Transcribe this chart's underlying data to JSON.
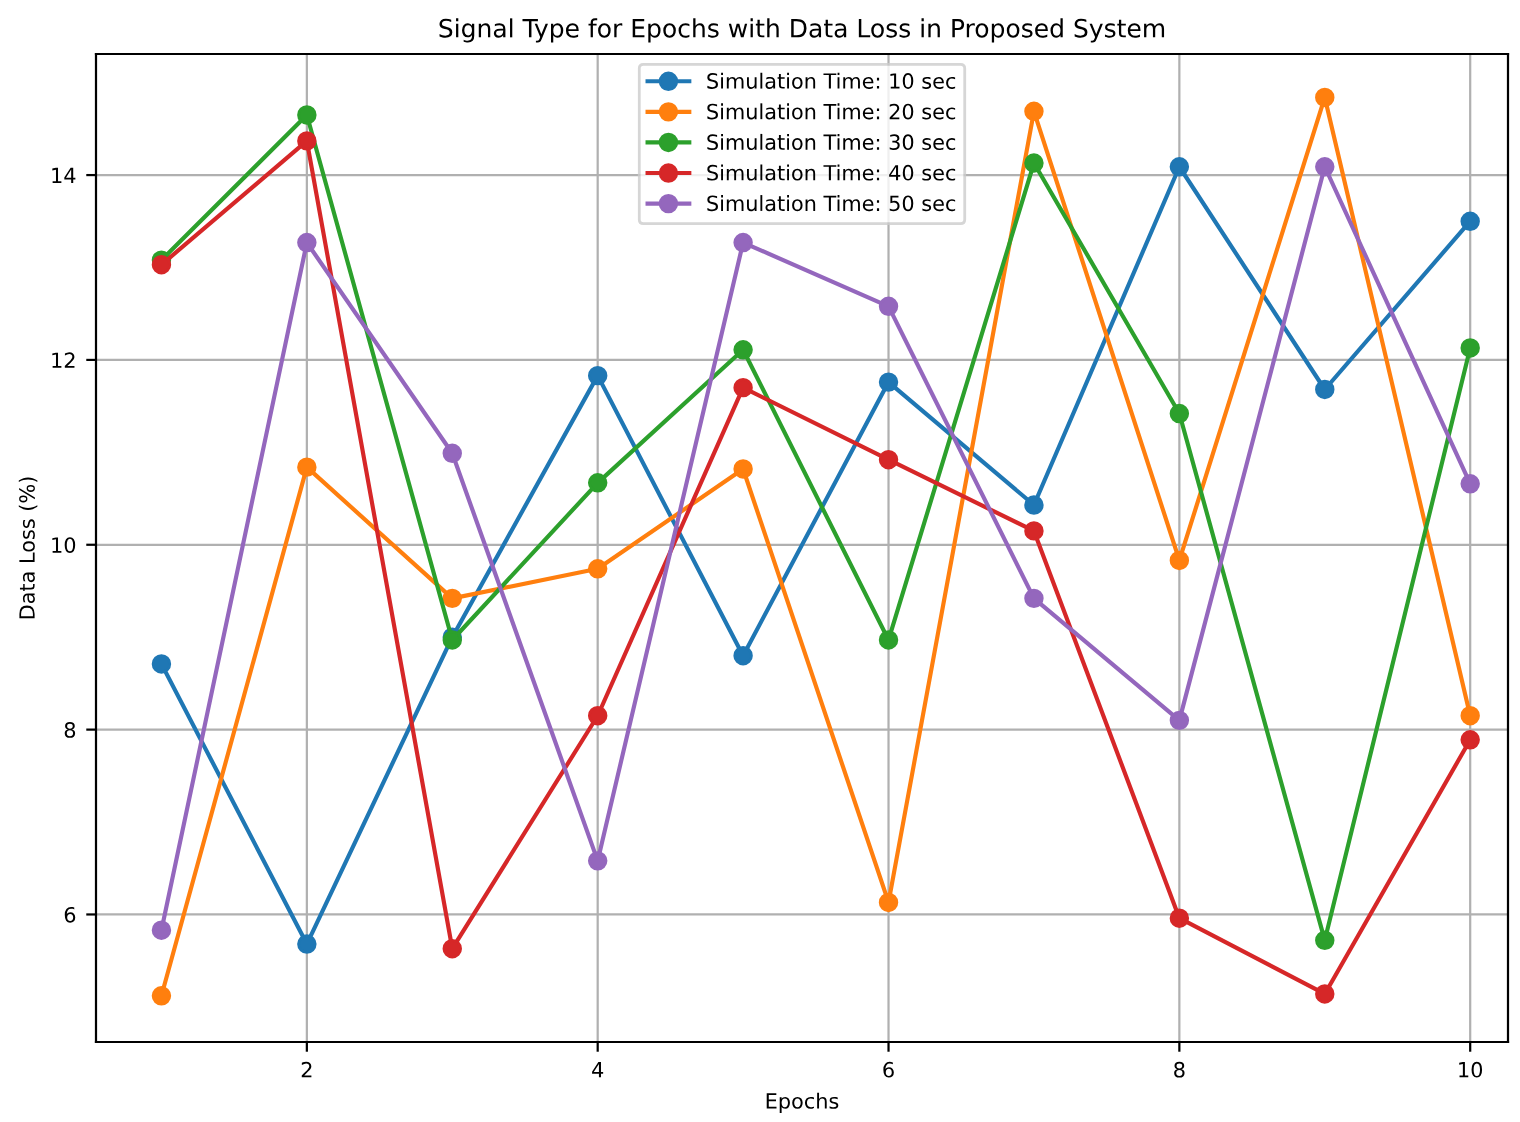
{
  "chart_data": {
    "type": "line",
    "title": "Signal Type for Epochs with Data Loss in Proposed System",
    "xlabel": "Epochs",
    "ylabel": "Data Loss (%)",
    "x": [
      1,
      2,
      3,
      4,
      5,
      6,
      7,
      8,
      9,
      10
    ],
    "series": [
      {
        "name": "Simulation Time: 10 sec",
        "color": "#1f77b4",
        "values": [
          8.71,
          5.68,
          9.0,
          11.83,
          8.8,
          11.76,
          10.43,
          14.09,
          11.68,
          13.5
        ]
      },
      {
        "name": "Simulation Time: 20 sec",
        "color": "#ff7f0e",
        "values": [
          5.12,
          10.84,
          9.42,
          9.74,
          10.82,
          6.13,
          14.69,
          9.83,
          14.84,
          8.15
        ]
      },
      {
        "name": "Simulation Time: 30 sec",
        "color": "#2ca02c",
        "values": [
          13.08,
          14.65,
          8.97,
          10.67,
          12.11,
          8.97,
          14.13,
          11.42,
          5.72,
          12.13
        ]
      },
      {
        "name": "Simulation Time: 40 sec",
        "color": "#d62728",
        "values": [
          13.03,
          14.37,
          5.63,
          8.15,
          11.7,
          10.92,
          10.15,
          5.96,
          5.14,
          7.89
        ]
      },
      {
        "name": "Simulation Time: 50 sec",
        "color": "#9467bd",
        "values": [
          5.83,
          13.27,
          10.99,
          6.58,
          13.27,
          12.58,
          9.42,
          8.1,
          14.09,
          10.66
        ]
      }
    ],
    "xlim": [
      0.55,
      10.26
    ],
    "ylim": [
      4.62,
      15.31
    ],
    "xticks": [
      2,
      4,
      6,
      8,
      10
    ],
    "yticks": [
      6,
      8,
      10,
      12,
      14
    ],
    "grid": true,
    "legend": "top center",
    "marker": "circle",
    "line_style": "solid"
  }
}
